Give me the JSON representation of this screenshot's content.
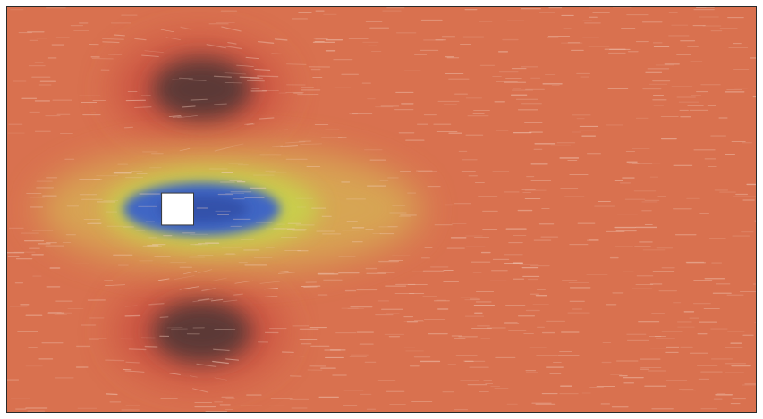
{
  "visualization": {
    "kind": "flow field around square obstacle",
    "colors": {
      "background": "#d9714f",
      "vortex_ring": "#c64a3c",
      "vortex_core": "#4a3434",
      "wake_outer": "#d7b254",
      "wake_mid": "#c8d24c",
      "wake_inner": "#3f66c4",
      "wake_center": "#2e4aa0",
      "obstacle": "#ffffff",
      "streak": "#f3d2c2"
    },
    "icons": {
      "obstacle": "square-obstacle-icon"
    }
  }
}
